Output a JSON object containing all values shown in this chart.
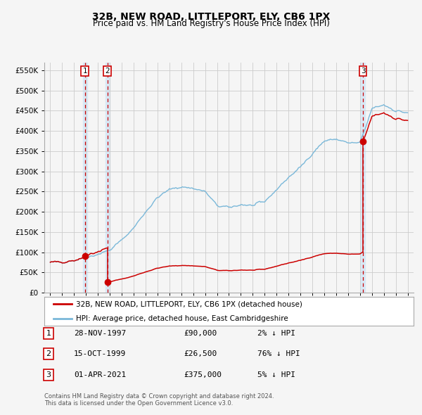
{
  "title": "32B, NEW ROAD, LITTLEPORT, ELY, CB6 1PX",
  "subtitle": "Price paid vs. HM Land Registry's House Price Index (HPI)",
  "legend_line1": "32B, NEW ROAD, LITTLEPORT, ELY, CB6 1PX (detached house)",
  "legend_line2": "HPI: Average price, detached house, East Cambridgeshire",
  "footer1": "Contains HM Land Registry data © Crown copyright and database right 2024.",
  "footer2": "This data is licensed under the Open Government Licence v3.0.",
  "transactions": [
    {
      "num": 1,
      "date": "28-NOV-1997",
      "price": 90000,
      "pct": "2%",
      "dir": "↓",
      "x_year": 1997.91
    },
    {
      "num": 2,
      "date": "15-OCT-1999",
      "price": 26500,
      "pct": "76%",
      "dir": "↓",
      "x_year": 1999.79
    },
    {
      "num": 3,
      "date": "01-APR-2021",
      "price": 375000,
      "pct": "5%",
      "dir": "↓",
      "x_year": 2021.25
    }
  ],
  "ylim": [
    0,
    570000
  ],
  "yticks": [
    0,
    50000,
    100000,
    150000,
    200000,
    250000,
    300000,
    350000,
    400000,
    450000,
    500000,
    550000
  ],
  "ytick_labels": [
    "£0",
    "£50K",
    "£100K",
    "£150K",
    "£200K",
    "£250K",
    "£300K",
    "£350K",
    "£400K",
    "£450K",
    "£500K",
    "£550K"
  ],
  "xlim": [
    1994.5,
    2025.5
  ],
  "hpi_color": "#7ab8d9",
  "price_color": "#cc0000",
  "dot_color": "#cc0000",
  "vline_color": "#cc0000",
  "shade_color": "#d8e8f5",
  "bg_color": "#f5f5f5",
  "grid_color": "#cccccc",
  "sale1_x": 1997.91,
  "sale1_p": 90000,
  "sale2_x": 1999.79,
  "sale2_p": 26500,
  "sale3_x": 2021.25,
  "sale3_p": 375000
}
